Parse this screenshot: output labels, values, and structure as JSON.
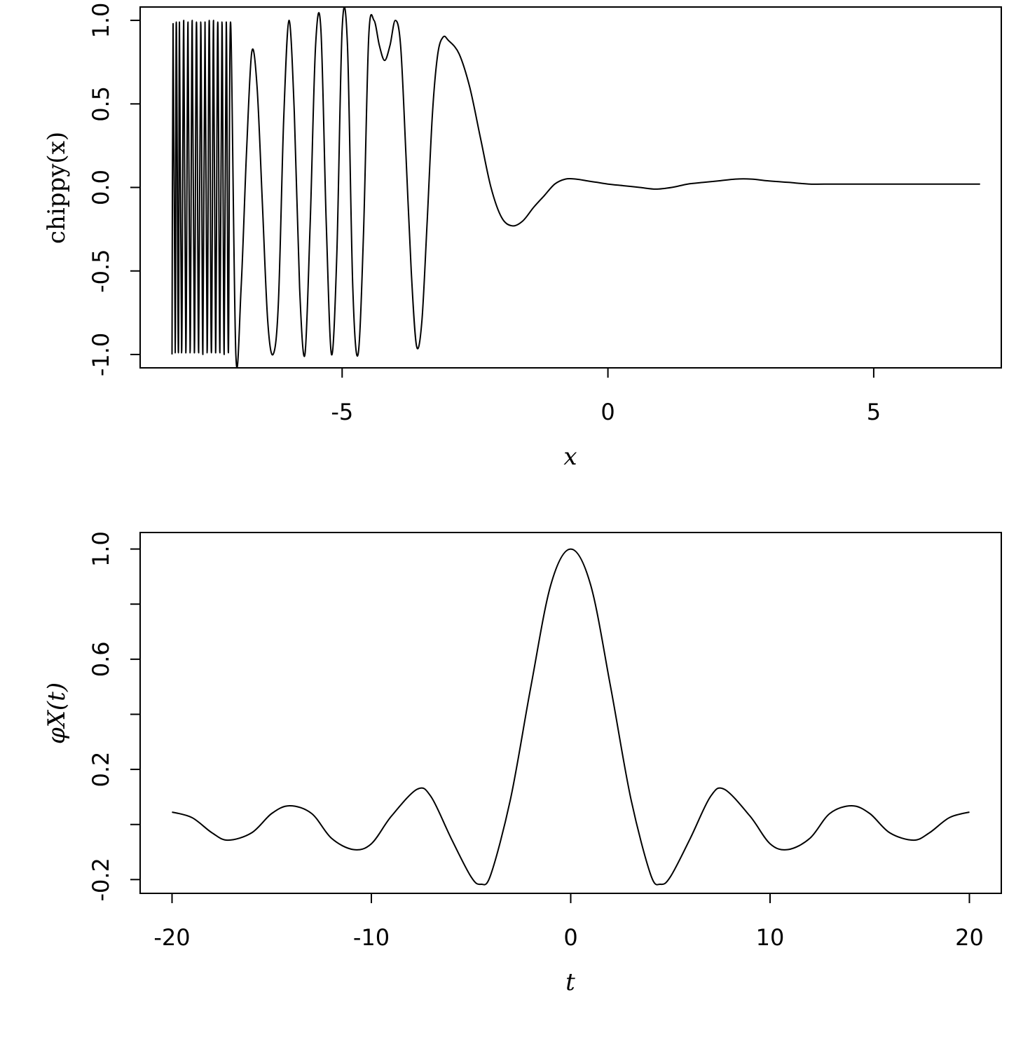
{
  "chart_data": [
    {
      "type": "line",
      "xlabel": "x",
      "ylabel": "chippy(x)",
      "xlim": [
        -8.8,
        7.4
      ],
      "ylim": [
        -1.08,
        1.08
      ],
      "x_ticks": [
        -5,
        0,
        5
      ],
      "x_tick_labels": [
        "-5",
        "0",
        "5"
      ],
      "y_ticks": [
        -1.0,
        -0.5,
        0.0,
        0.5,
        1.0
      ],
      "y_tick_labels": [
        "-1.0",
        "-0.5",
        "0.0",
        "0.5",
        "1.0"
      ],
      "grid": false,
      "series": [
        {
          "x": [
            -8.2,
            -8.18,
            -8.14,
            -8.12,
            -8.08,
            -8.06,
            -8.02,
            -7.98,
            -7.94,
            -7.9,
            -7.86,
            -7.82,
            -7.78,
            -7.74,
            -7.7,
            -7.66,
            -7.62,
            -7.58,
            -7.54,
            -7.5,
            -7.46,
            -7.42,
            -7.38,
            -7.34,
            -7.3,
            -7.26,
            -7.22,
            -7.18,
            -7.14,
            -7.1,
            -7.0,
            -6.9,
            -6.8,
            -6.7,
            -6.6,
            -6.5,
            -6.4,
            -6.3,
            -6.2,
            -6.1,
            -6.0,
            -5.9,
            -5.8,
            -5.7,
            -5.6,
            -5.5,
            -5.4,
            -5.3,
            -5.2,
            -5.1,
            -5.0,
            -4.9,
            -4.8,
            -4.7,
            -4.6,
            -4.5,
            -4.4,
            -4.3,
            -4.2,
            -4.1,
            -4.0,
            -3.9,
            -3.8,
            -3.7,
            -3.6,
            -3.5,
            -3.4,
            -3.3,
            -3.2,
            -3.1,
            -3.0,
            -2.8,
            -2.6,
            -2.4,
            -2.2,
            -2.0,
            -1.8,
            -1.6,
            -1.4,
            -1.2,
            -1.0,
            -0.8,
            -0.6,
            -0.4,
            -0.2,
            0.0,
            0.3,
            0.6,
            0.9,
            1.2,
            1.5,
            1.8,
            2.1,
            2.4,
            2.7,
            3.0,
            3.4,
            3.8,
            4.2,
            4.6,
            5.0,
            5.4,
            5.8,
            6.2,
            6.6,
            7.0
          ],
          "y": [
            -1.0,
            0.98,
            -0.99,
            0.99,
            -0.99,
            0.99,
            -0.99,
            1.0,
            -0.99,
            0.99,
            -0.99,
            1.0,
            -0.99,
            0.99,
            -0.99,
            0.99,
            -1.0,
            0.99,
            -0.99,
            1.0,
            -0.99,
            1.0,
            -0.99,
            0.99,
            -0.99,
            0.99,
            -1.0,
            0.99,
            -0.99,
            0.99,
            -1.0,
            -0.6,
            0.2,
            0.81,
            0.6,
            -0.1,
            -0.8,
            -1.0,
            -0.7,
            0.4,
            1.0,
            0.45,
            -0.6,
            -1.0,
            -0.2,
            0.85,
            0.95,
            -0.2,
            -1.0,
            -0.4,
            0.95,
            0.85,
            -0.6,
            -1.0,
            -0.3,
            0.9,
            1.0,
            0.85,
            0.76,
            0.85,
            1.0,
            0.85,
            0.2,
            -0.5,
            -0.95,
            -0.8,
            -0.2,
            0.45,
            0.8,
            0.9,
            0.88,
            0.8,
            0.6,
            0.3,
            0.0,
            -0.18,
            -0.23,
            -0.2,
            -0.12,
            -0.05,
            0.02,
            0.05,
            0.05,
            0.04,
            0.03,
            0.02,
            0.01,
            0.0,
            -0.01,
            0.0,
            0.02,
            0.03,
            0.04,
            0.05,
            0.05,
            0.04,
            0.03,
            0.02,
            0.02,
            0.02,
            0.02,
            0.02,
            0.02,
            0.02,
            0.02,
            0.02
          ]
        }
      ]
    },
    {
      "type": "line",
      "xlabel": "t",
      "ylabel": "φX(t)",
      "xlim": [
        -21.6,
        21.6
      ],
      "ylim": [
        -0.25,
        1.06
      ],
      "x_ticks": [
        -20,
        -10,
        0,
        10,
        20
      ],
      "x_tick_labels": [
        "-20",
        "-10",
        "0",
        "10",
        "20"
      ],
      "y_ticks": [
        -0.2,
        0.0,
        0.2,
        0.4,
        0.6,
        0.8,
        1.0
      ],
      "y_tick_labels": [
        "-0.2",
        "",
        "0.2",
        "",
        "0.6",
        "",
        "1.0"
      ],
      "grid": false,
      "series": [
        {
          "x": [
            -20.0,
            -19.0,
            -18.0,
            -17.2,
            -16.0,
            -15.0,
            -14.1,
            -13.0,
            -12.0,
            -10.9,
            -10.0,
            -9.0,
            -7.7,
            -7.0,
            -6.0,
            -5.0,
            -4.5,
            -4.0,
            -3.0,
            -2.0,
            -1.0,
            0.0,
            1.0,
            2.0,
            3.0,
            4.0,
            4.5,
            5.0,
            6.0,
            7.0,
            7.7,
            9.0,
            10.0,
            10.9,
            12.0,
            13.0,
            14.1,
            15.0,
            16.0,
            17.2,
            18.0,
            19.0,
            20.0
          ],
          "y": [
            0.045,
            0.025,
            -0.03,
            -0.057,
            -0.03,
            0.04,
            0.068,
            0.04,
            -0.05,
            -0.091,
            -0.07,
            0.03,
            0.128,
            0.1,
            -0.05,
            -0.19,
            -0.217,
            -0.18,
            0.1,
            0.5,
            0.87,
            1.0,
            0.87,
            0.5,
            0.1,
            -0.18,
            -0.217,
            -0.19,
            -0.05,
            0.1,
            0.128,
            0.03,
            -0.07,
            -0.091,
            -0.05,
            0.04,
            0.068,
            0.04,
            -0.03,
            -0.057,
            -0.03,
            0.025,
            0.045
          ]
        }
      ]
    }
  ]
}
